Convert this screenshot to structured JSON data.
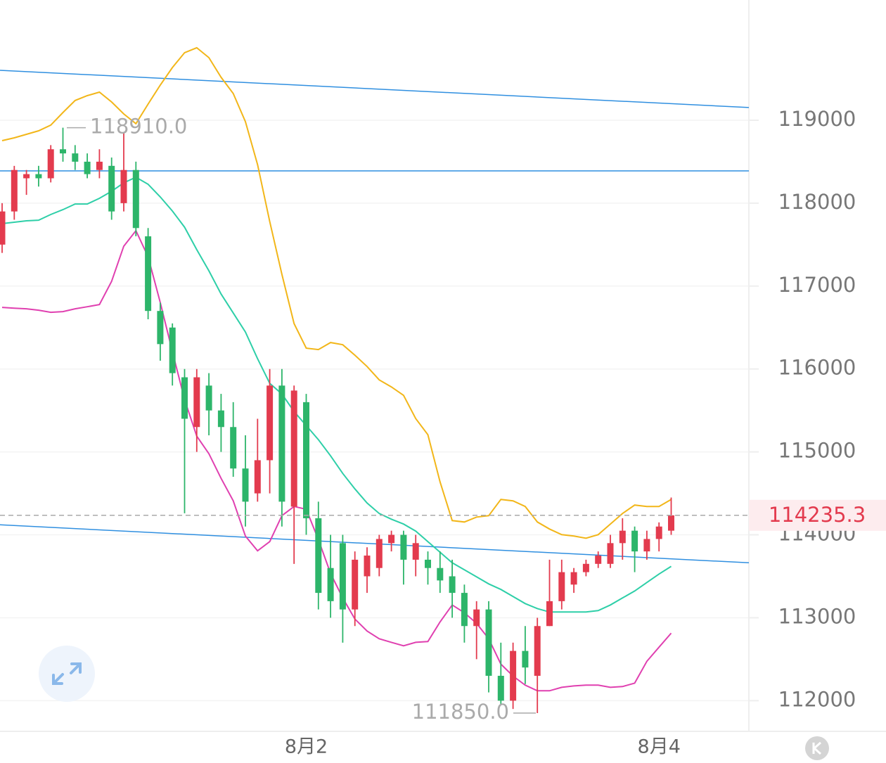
{
  "chart_data": {
    "type": "candlestick",
    "categories": [
      null,
      null,
      null,
      null,
      null,
      null,
      null,
      null,
      null,
      null,
      null,
      null,
      null,
      null,
      null,
      null,
      null,
      null,
      null,
      null,
      null,
      null,
      null,
      null,
      null,
      "8月2",
      null,
      null,
      null,
      null,
      null,
      null,
      null,
      null,
      null,
      null,
      null,
      null,
      null,
      null,
      null,
      null,
      null,
      null,
      null,
      null,
      null,
      null,
      null,
      null,
      null,
      null,
      null,
      null,
      "8月4",
      null
    ],
    "open": [
      117500,
      117900,
      118300,
      118350,
      118300,
      118650,
      118600,
      118500,
      118400,
      118450,
      118000,
      118400,
      117600,
      116700,
      116500,
      115900,
      115300,
      115800,
      115500,
      115300,
      114800,
      114500,
      114900,
      115800,
      114340,
      115600,
      114200,
      113600,
      113900,
      113100,
      113500,
      113600,
      113900,
      114000,
      113700,
      113700,
      113600,
      113500,
      113300,
      112900,
      113100,
      112300,
      112000,
      112600,
      112300,
      112900,
      113200,
      113400,
      113550,
      113650,
      113650,
      113900,
      114050,
      113800,
      113950,
      114050
    ],
    "high": [
      118000,
      118450,
      118400,
      118450,
      118700,
      118910,
      118700,
      118600,
      118650,
      118550,
      118850,
      118500,
      117700,
      116800,
      116550,
      116000,
      116000,
      115950,
      115700,
      115600,
      115200,
      115400,
      116000,
      116000,
      115800,
      115700,
      114400,
      114000,
      114000,
      113800,
      113850,
      114000,
      114050,
      114050,
      114000,
      113800,
      113800,
      113700,
      113400,
      113200,
      113200,
      112700,
      112700,
      112900,
      113000,
      113700,
      113700,
      113600,
      113700,
      113800,
      114000,
      114200,
      114100,
      114050,
      114150,
      114450
    ],
    "low": [
      117400,
      117800,
      118100,
      118200,
      118250,
      118500,
      118400,
      118300,
      118300,
      117800,
      117900,
      117600,
      116600,
      116100,
      115800,
      114260,
      115000,
      115200,
      115000,
      114700,
      114100,
      114400,
      114500,
      114100,
      113650,
      114000,
      113100,
      113000,
      112700,
      112900,
      113300,
      113500,
      113800,
      113400,
      113500,
      113400,
      113300,
      113000,
      112700,
      112500,
      112100,
      111950,
      111900,
      112200,
      111850,
      112900,
      113100,
      113300,
      113500,
      113600,
      113600,
      113700,
      113550,
      113700,
      113800,
      114000
    ],
    "close": [
      117900,
      118400,
      118350,
      118300,
      118650,
      118600,
      118500,
      118350,
      118500,
      117900,
      118400,
      117700,
      116700,
      116300,
      115950,
      115400,
      115900,
      115500,
      115300,
      114800,
      114400,
      114900,
      115800,
      114400,
      115740,
      114200,
      113300,
      113200,
      113100,
      113700,
      113750,
      113950,
      114000,
      113700,
      113900,
      113600,
      113450,
      113300,
      112900,
      113100,
      112300,
      112000,
      112600,
      112400,
      112900,
      113200,
      113550,
      113550,
      113650,
      113750,
      113900,
      114050,
      113800,
      113950,
      114100,
      114235.3
    ],
    "up_color": "#e33b4e",
    "down_color": "#2db56a",
    "lines": [
      {
        "color": "#f2b619",
        "values": [
          118754,
          118788,
          118830,
          118873,
          118941,
          119093,
          119238,
          119297,
          119339,
          119220,
          119076,
          118958,
          119195,
          119424,
          119636,
          119815,
          119874,
          119755,
          119518,
          119322,
          118983,
          118465,
          117778,
          117142,
          116548,
          116251,
          116234,
          116319,
          116293,
          116166,
          116030,
          115869,
          115784,
          115682,
          115402,
          115207,
          114639,
          114172,
          114155,
          114214,
          114231,
          114427,
          114410,
          114342,
          114155,
          114070,
          114002,
          113985,
          113960,
          114002,
          114130,
          114257,
          114359,
          114342,
          114342,
          114427
        ]
      },
      {
        "color": "#2ecfa8",
        "values": [
          117753,
          117770,
          117787,
          117795,
          117863,
          117922,
          117990,
          117990,
          118058,
          118143,
          118245,
          118313,
          118228,
          118075,
          117905,
          117710,
          117439,
          117184,
          116904,
          116675,
          116446,
          116124,
          115827,
          115699,
          115487,
          115318,
          115148,
          114953,
          114741,
          114554,
          114384,
          114257,
          114189,
          114130,
          114045,
          113918,
          113790,
          113663,
          113578,
          113493,
          113408,
          113341,
          113256,
          113171,
          113111,
          113069,
          113069,
          113069,
          113069,
          113086,
          113154,
          113239,
          113323,
          113425,
          113527,
          113620
        ]
      },
      {
        "color": "#e040b0",
        "values": [
          116743,
          116734,
          116726,
          116709,
          116684,
          116692,
          116726,
          116751,
          116777,
          117057,
          117481,
          117668,
          117354,
          116802,
          116209,
          115631,
          115190,
          114978,
          114681,
          114410,
          113985,
          113807,
          113918,
          114231,
          114342,
          114308,
          113943,
          113536,
          113239,
          112984,
          112840,
          112747,
          112704,
          112662,
          112704,
          112713,
          112950,
          113154,
          113061,
          112933,
          112747,
          112441,
          112297,
          112187,
          112119,
          112119,
          112161,
          112178,
          112187,
          112187,
          112161,
          112170,
          112212,
          112475,
          112645,
          112814
        ]
      }
    ],
    "trend_lines": [
      {
        "color": "#2f8fe0",
        "values": [
          119602,
          119153
        ]
      },
      {
        "color": "#2f8fe0",
        "values": [
          118389,
          118389
        ]
      },
      {
        "color": "#2f8fe0",
        "values": [
          114121,
          113663
        ]
      }
    ],
    "last_price": 114235.3,
    "last_price_color": "#e33b4e",
    "high_label": {
      "value": 118910,
      "label": "118910.0"
    },
    "low_label": {
      "value": 111850,
      "label": "111850.0"
    },
    "ylim": [
      111630,
      120450
    ],
    "yticks": [
      112000,
      113000,
      114000,
      115000,
      116000,
      117000,
      118000,
      119000
    ],
    "grid": true
  }
}
